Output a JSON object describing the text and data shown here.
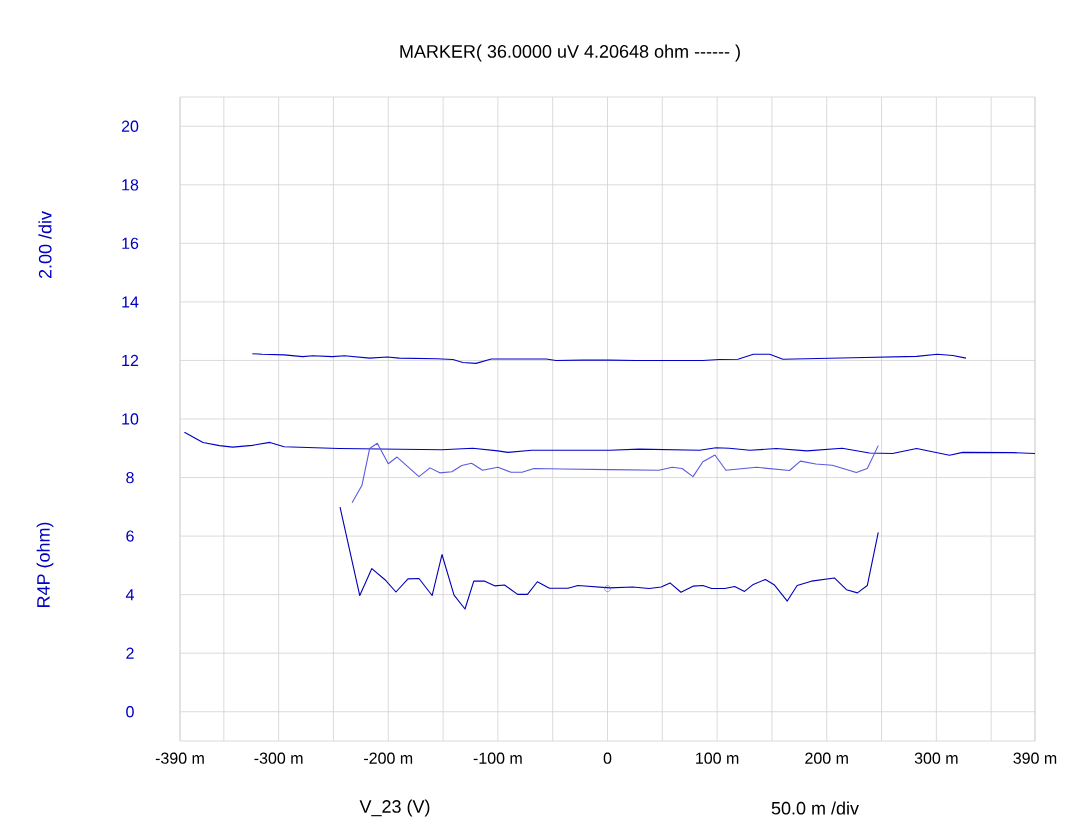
{
  "chart_data": {
    "type": "line",
    "title": "MARKER(  36.0000 uV   4.20648 ohm  ------ )",
    "xlabel": "V_23 (V)",
    "ylabel": "R4P (ohm)",
    "annotations": [
      "2.00  /div",
      "50.0 m /div"
    ],
    "xlim": [
      -390,
      390
    ],
    "ylim": [
      -1,
      21
    ],
    "xticks": [
      {
        "value": -390,
        "label": "-390 m"
      },
      {
        "value": -350,
        "label": null
      },
      {
        "value": -300,
        "label": "-300 m"
      },
      {
        "value": -250,
        "label": null
      },
      {
        "value": -200,
        "label": "-200 m"
      },
      {
        "value": -150,
        "label": null
      },
      {
        "value": -100,
        "label": "-100 m"
      },
      {
        "value": -50,
        "label": null
      },
      0,
      {
        "value": 50,
        "label": null
      },
      {
        "value": 100,
        "label": "100 m"
      },
      {
        "value": 150,
        "label": null
      },
      {
        "value": 200,
        "label": "200 m"
      },
      {
        "value": 250,
        "label": null
      },
      {
        "value": 300,
        "label": "300 m"
      },
      {
        "value": 350,
        "label": null
      },
      {
        "value": 390,
        "label": "390 m"
      }
    ],
    "yticks": [
      0,
      2,
      4,
      6,
      8,
      10,
      12,
      14,
      16,
      18,
      20
    ],
    "grid": true,
    "series": [
      {
        "color": "#0000c8",
        "x": [
          -324,
          -315,
          -295,
          -278,
          -269,
          -251,
          -240,
          -217,
          -201,
          -190,
          -156,
          -141,
          -132,
          -120,
          -106,
          -56,
          -47,
          -23,
          2,
          26,
          87,
          102,
          119,
          133,
          148,
          160,
          224,
          282,
          301,
          315,
          327
        ],
        "values": [
          12.23,
          12.21,
          12.19,
          12.13,
          12.16,
          12.13,
          12.16,
          12.08,
          12.12,
          12.08,
          12.06,
          12.03,
          11.93,
          11.9,
          12.05,
          12.05,
          12.0,
          12.01,
          12.01,
          12.0,
          12.0,
          12.03,
          12.04,
          12.21,
          12.21,
          12.04,
          12.09,
          12.14,
          12.21,
          12.17,
          12.08
        ]
      },
      {
        "color": "#0000c8",
        "x": [
          -386,
          -369,
          -354,
          -342,
          -324,
          -308,
          -295,
          -245,
          -151,
          -123,
          -100,
          -91,
          -69,
          2,
          29,
          84,
          99,
          111,
          130,
          154,
          182,
          214,
          239,
          260,
          282,
          312,
          324,
          370,
          390
        ],
        "values": [
          9.55,
          9.2,
          9.09,
          9.04,
          9.1,
          9.2,
          9.05,
          8.99,
          8.95,
          9.0,
          8.91,
          8.86,
          8.93,
          8.93,
          8.97,
          8.93,
          9.02,
          9.0,
          8.93,
          8.99,
          8.91,
          9.0,
          8.84,
          8.82,
          8.99,
          8.76,
          8.86,
          8.85,
          8.82
        ]
      },
      {
        "color": "#5a5ae0",
        "x": [
          -233,
          -224,
          -217,
          -210,
          -200,
          -192,
          -172,
          -162,
          -153,
          -142,
          -133,
          -124,
          -114,
          -100,
          -88,
          -78,
          -67,
          -41,
          2,
          47,
          59,
          68,
          78,
          87,
          98,
          108,
          136,
          166,
          176,
          190,
          205,
          227,
          237,
          247
        ],
        "values": [
          7.14,
          7.74,
          8.99,
          9.17,
          8.47,
          8.7,
          8.03,
          8.33,
          8.16,
          8.2,
          8.41,
          8.49,
          8.25,
          8.35,
          8.18,
          8.18,
          8.31,
          8.29,
          8.27,
          8.25,
          8.35,
          8.31,
          8.03,
          8.54,
          8.77,
          8.25,
          8.35,
          8.24,
          8.56,
          8.46,
          8.42,
          8.17,
          8.31,
          9.09
        ]
      },
      {
        "color": "#0000b4",
        "x": [
          -244,
          -226,
          -215,
          -203,
          -193,
          -182,
          -172,
          -160,
          -151,
          -140,
          -130,
          -122,
          -112,
          -103,
          -94,
          -82,
          -73,
          -64,
          -53,
          -36,
          -27,
          2,
          23,
          38,
          49,
          57,
          67,
          78,
          87,
          95,
          107,
          116,
          125,
          133,
          144,
          152,
          164,
          173,
          186,
          207,
          218,
          228,
          237,
          247
        ],
        "values": [
          6.99,
          3.97,
          4.89,
          4.51,
          4.09,
          4.54,
          4.55,
          3.97,
          5.37,
          3.98,
          3.51,
          4.46,
          4.46,
          4.3,
          4.33,
          4.01,
          4.01,
          4.44,
          4.22,
          4.22,
          4.31,
          4.23,
          4.26,
          4.21,
          4.26,
          4.4,
          4.08,
          4.29,
          4.31,
          4.21,
          4.21,
          4.28,
          4.11,
          4.35,
          4.52,
          4.34,
          3.78,
          4.31,
          4.46,
          4.57,
          4.17,
          4.06,
          4.31,
          6.13
        ]
      },
      {
        "type": "scatter",
        "marker": "circle",
        "color": "#5a5ae0",
        "x": [
          0.036
        ],
        "values": [
          4.20648
        ]
      }
    ]
  }
}
